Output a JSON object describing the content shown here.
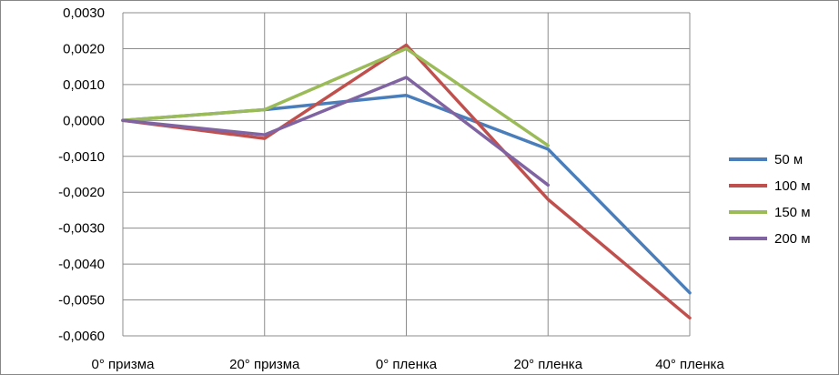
{
  "chart_data": {
    "type": "line",
    "categories": [
      "0° призма",
      "20° призма",
      "0° пленка",
      "20° пленка",
      "40° пленка"
    ],
    "ylim": [
      -0.006,
      0.003
    ],
    "yticks": [
      0.003,
      0.002,
      0.001,
      0.0,
      -0.001,
      -0.002,
      -0.003,
      -0.004,
      -0.005,
      -0.006
    ],
    "ytick_labels": [
      "0,0030",
      "0,0020",
      "0,0010",
      "0,0000",
      "-0,0010",
      "-0,0020",
      "-0,0030",
      "-0,0040",
      "-0,0050",
      "-0,0060"
    ],
    "grid": true,
    "legend_position": "right",
    "series": [
      {
        "name": "50 м",
        "color": "#4a7ebb",
        "values": [
          0.0,
          0.0003,
          0.0007,
          -0.0008,
          -0.0048
        ]
      },
      {
        "name": "100 м",
        "color": "#c0504d",
        "values": [
          0.0,
          -0.0005,
          0.0021,
          -0.0022,
          -0.0055
        ]
      },
      {
        "name": "150 м",
        "color": "#9bbb59",
        "values": [
          0.0,
          0.0003,
          0.002,
          -0.0007,
          null
        ]
      },
      {
        "name": "200 м",
        "color": "#8064a2",
        "values": [
          0.0,
          -0.0004,
          0.0012,
          -0.0018,
          null
        ]
      }
    ]
  }
}
